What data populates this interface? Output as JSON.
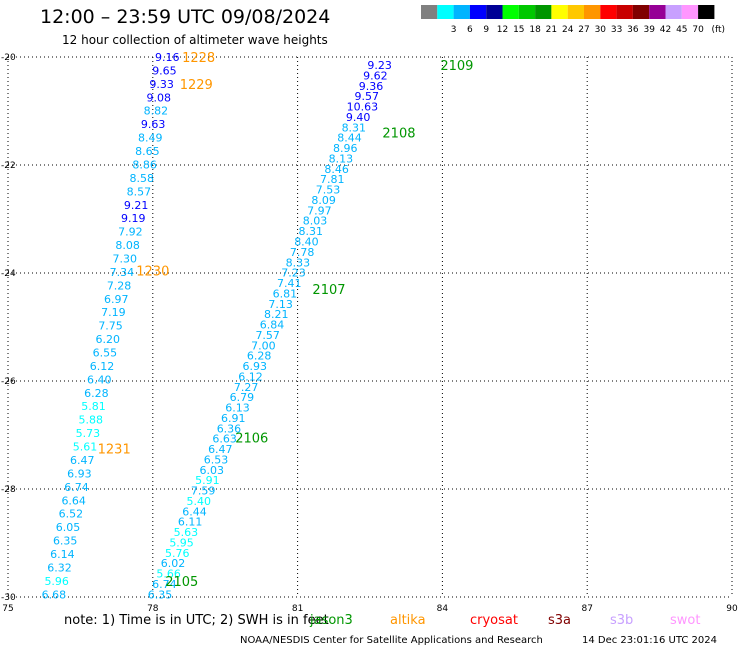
{
  "header": {
    "title": "12:00 – 23:59 UTC 09/08/2024",
    "subtitle": "12 hour collection of altimeter wave heights"
  },
  "legend": {
    "unit": "(ft)",
    "bins": [
      {
        "label": "",
        "color": "#808080"
      },
      {
        "label": "3",
        "color": "#00ffff"
      },
      {
        "label": "6",
        "color": "#00b4ff"
      },
      {
        "label": "9",
        "color": "#0000ff"
      },
      {
        "label": "12",
        "color": "#000096"
      },
      {
        "label": "15",
        "color": "#00ff00"
      },
      {
        "label": "18",
        "color": "#00c800"
      },
      {
        "label": "21",
        "color": "#009600"
      },
      {
        "label": "24",
        "color": "#ffff00"
      },
      {
        "label": "27",
        "color": "#ffc800"
      },
      {
        "label": "30",
        "color": "#ff9600"
      },
      {
        "label": "33",
        "color": "#ff0000"
      },
      {
        "label": "36",
        "color": "#c80000"
      },
      {
        "label": "39",
        "color": "#800000"
      },
      {
        "label": "42",
        "color": "#960096"
      },
      {
        "label": "45",
        "color": "#c8a0ff"
      },
      {
        "label": "70",
        "color": "#ff96ff"
      },
      {
        "label": "",
        "color": "#000000"
      }
    ]
  },
  "footer": {
    "note": "note:  1) Time is in UTC;  2) SWH is in feet",
    "credit": "NOAA/NESDIS Center for Satellite Applications and Research",
    "stamp": "14 Dec 23:01:16 UTC 2024",
    "satellites": [
      {
        "name": "jason3",
        "color": "#009600"
      },
      {
        "name": "altika",
        "color": "#ff9600"
      },
      {
        "name": "cryosat",
        "color": "#ff0000"
      },
      {
        "name": "s3a",
        "color": "#800000"
      },
      {
        "name": "s3b",
        "color": "#c8a0ff"
      },
      {
        "name": "swot",
        "color": "#ff96ff"
      }
    ]
  },
  "chart_data": {
    "type": "scatter",
    "xlim": [
      75,
      90
    ],
    "ylim": [
      -30,
      -20
    ],
    "x_ticks": [
      "75",
      "78",
      "81",
      "84",
      "87",
      "90"
    ],
    "y_ticks": [
      "-20",
      "-22",
      "-24",
      "-26",
      "-28",
      "-30"
    ],
    "grid": true,
    "series": [
      {
        "name": "altika",
        "color": "#ff9600",
        "start": [
          78.3,
          -20.0
        ],
        "end": [
          75.95,
          -29.95
        ],
        "values": [
          "9.16",
          "9.65",
          "9.33",
          "9.08",
          "8.82",
          "9.63",
          "8.49",
          "8.65",
          "8.86",
          "8.58",
          "8.57",
          "9.21",
          "9.19",
          "7.92",
          "8.08",
          "7.30",
          "7.34",
          "7.28",
          "6.97",
          "7.19",
          "7.75",
          "6.20",
          "6.55",
          "6.12",
          "6.40",
          "6.28",
          "5.81",
          "5.88",
          "5.73",
          "5.61",
          "6.47",
          "6.93",
          "6.74",
          "6.64",
          "6.52",
          "6.05",
          "6.35",
          "6.14",
          "6.32",
          "5.96",
          "6.68"
        ],
        "time_labels": [
          {
            "text": "1228",
            "lon": 78.95,
            "lat": -20.0
          },
          {
            "text": "1229",
            "lon": 78.9,
            "lat": -20.5
          },
          {
            "text": "1230",
            "lon": 78.0,
            "lat": -23.95
          },
          {
            "text": "1231",
            "lon": 77.2,
            "lat": -27.25
          }
        ]
      },
      {
        "name": "jason3",
        "color": "#009600",
        "start": [
          82.7,
          -20.15
        ],
        "end": [
          78.15,
          -29.95
        ],
        "values": [
          "9.23",
          "9.62",
          "9.36",
          "9.57",
          "10.63",
          "9.40",
          "8.31",
          "8.44",
          "8.96",
          "8.13",
          "8.46",
          "7.81",
          "7.53",
          "8.09",
          "7.97",
          "8.03",
          "8.31",
          "8.40",
          "7.78",
          "8.33",
          "7.23",
          "7.41",
          "6.81",
          "7.13",
          "8.21",
          "6.84",
          "7.57",
          "7.00",
          "6.28",
          "6.93",
          "6.12",
          "7.27",
          "6.79",
          "6.13",
          "6.91",
          "6.36",
          "6.63",
          "6.47",
          "6.53",
          "6.03",
          "5.91",
          "7.59",
          "5.40",
          "6.44",
          "6.11",
          "5.63",
          "5.95",
          "5.76",
          "6.02",
          "5.66",
          "6.74",
          "6.35"
        ],
        "time_labels": [
          {
            "text": "2109",
            "lon": 84.3,
            "lat": -20.15
          },
          {
            "text": "2108",
            "lon": 83.1,
            "lat": -21.4
          },
          {
            "text": "2107",
            "lon": 81.65,
            "lat": -24.3
          },
          {
            "text": "2106",
            "lon": 80.05,
            "lat": -27.05
          },
          {
            "text": "2105",
            "lon": 78.6,
            "lat": -29.7
          }
        ]
      }
    ]
  }
}
